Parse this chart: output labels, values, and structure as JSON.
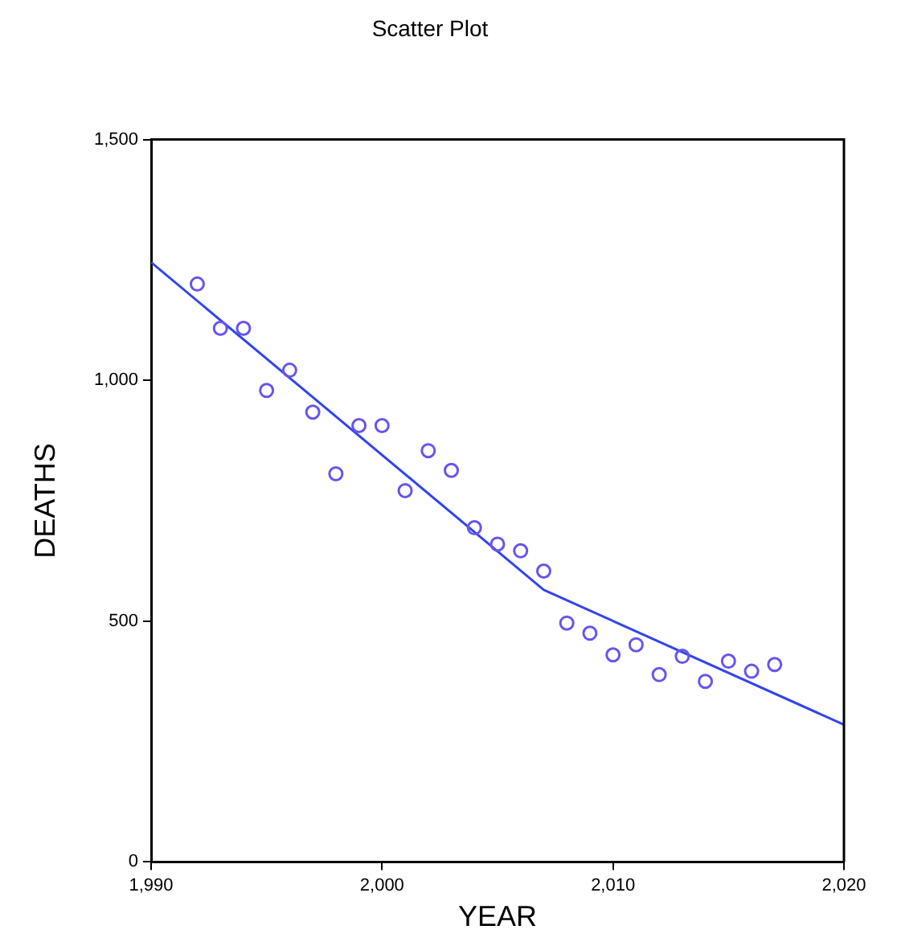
{
  "chart_data": {
    "type": "scatter",
    "title": "Scatter Plot",
    "xlabel": "YEAR",
    "ylabel": "DEATHS",
    "xlim": [
      1990,
      2020
    ],
    "xticks": [
      {
        "value": 1990,
        "label": "1,990"
      },
      {
        "value": 2000,
        "label": "2,000"
      },
      {
        "value": 2010,
        "label": "2,010"
      },
      {
        "value": 2020,
        "label": "2,020"
      }
    ],
    "ylim": [
      0,
      1500
    ],
    "yticks": [
      0,
      500,
      {
        "value": 1000,
        "label": "1,000"
      },
      {
        "value": 1500,
        "label": "1,500"
      }
    ],
    "grid": false,
    "legend": false,
    "series": [
      {
        "marker": "circle",
        "color": "#6655ee",
        "x": [
          1992,
          1993,
          1994,
          1995,
          1996,
          1997,
          1998,
          1999,
          2000,
          2001,
          2002,
          2003,
          2004,
          2005,
          2006,
          2007,
          2008,
          2009,
          2010,
          2011,
          2012,
          2013,
          2014,
          2015,
          2016,
          2017
        ],
        "values": [
          1200,
          1108,
          1108,
          979,
          1021,
          934,
          806,
          906,
          906,
          771,
          854,
          813,
          694,
          660,
          646,
          604,
          496,
          475,
          430,
          451,
          389,
          427,
          375,
          417,
          396,
          410
        ]
      },
      {
        "type": "line",
        "color": "#3344ee",
        "x": [
          1990,
          2007,
          2020
        ],
        "values": [
          1245,
          565,
          285
        ],
        "marker": "none",
        "line_style": "solid"
      }
    ]
  }
}
